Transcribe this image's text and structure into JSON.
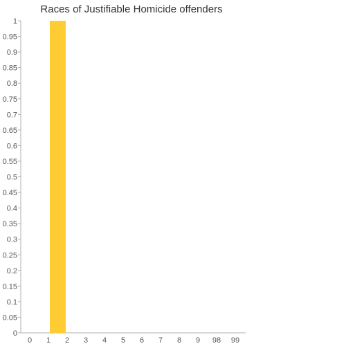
{
  "chart_data": {
    "type": "bar",
    "title": "Races of Justifiable Homicide offenders",
    "xlabel": "",
    "ylabel": "",
    "categories": [
      "0",
      "1",
      "2",
      "3",
      "4",
      "5",
      "6",
      "7",
      "8",
      "9",
      "98",
      "99"
    ],
    "values": [
      0,
      1,
      0,
      0,
      0,
      0,
      0,
      0,
      0,
      0,
      0,
      0
    ],
    "ylim": [
      0,
      1
    ],
    "yticks": [
      "0",
      "0.05",
      "0.1",
      "0.15",
      "0.2",
      "0.25",
      "0.3",
      "0.35",
      "0.4",
      "0.45",
      "0.5",
      "0.55",
      "0.6",
      "0.65",
      "0.7",
      "0.75",
      "0.8",
      "0.85",
      "0.9",
      "0.95",
      "1"
    ],
    "bar_color": "#ffcc33",
    "grid": false,
    "legend": "none"
  }
}
